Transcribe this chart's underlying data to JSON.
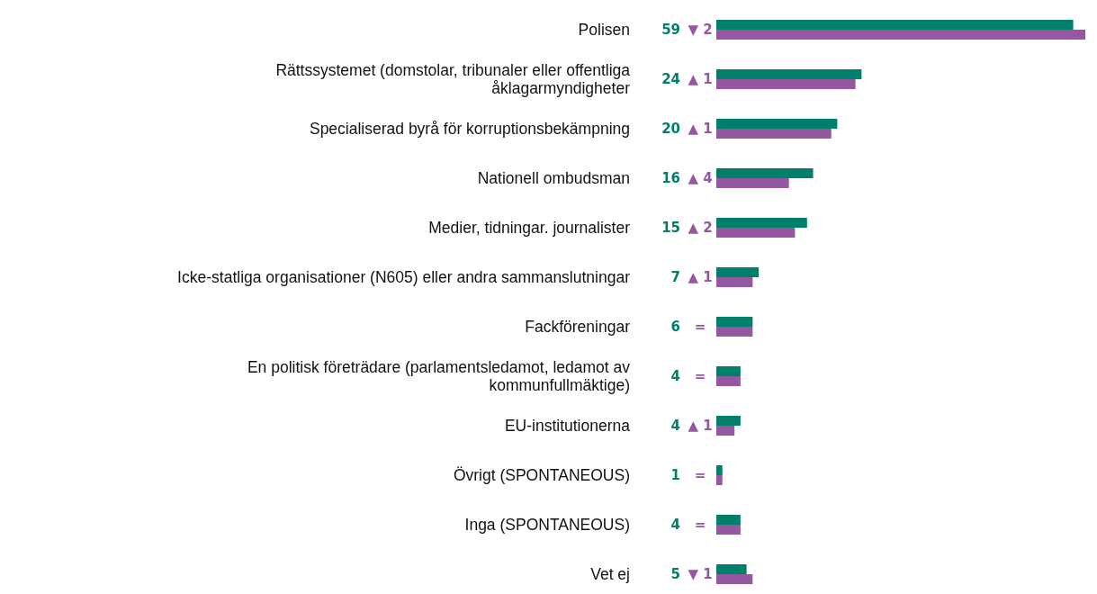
{
  "chart_data": {
    "type": "bar",
    "orientation": "horizontal",
    "categories": [
      "Polisen",
      "Rättssystemet (domstolar, tribunaler eller offentliga åklagarmyndigheter",
      "Specialiserad byrå för korruptionsbekämpning",
      "Nationell ombudsman",
      "Medier, tidningar. journalister",
      "Icke-statliga organisationer (N605) eller andra sammanslutningar",
      "Fackföreningar",
      "En politisk företrädare (parlamentsledamot, ledamot av kommunfullmäktige)",
      "EU-institutionerna",
      "Övrigt (SPONTANEOUS)",
      "Inga (SPONTANEOUS)",
      "Vet ej"
    ],
    "series": [
      {
        "color": "#00806b",
        "values": [
          59,
          24,
          20,
          16,
          15,
          7,
          6,
          4,
          4,
          1,
          4,
          5
        ],
        "value_labels": [
          "59",
          "24",
          "20",
          "16",
          "15",
          "7",
          "6",
          "4",
          "4",
          "1",
          "4",
          "5"
        ]
      },
      {
        "color": "#9558a0",
        "values": [
          61,
          23,
          19,
          12,
          13,
          6,
          6,
          4,
          3,
          1,
          4,
          6
        ]
      }
    ],
    "annotations": [
      "▼ 2",
      "▲ 1",
      "▲ 1",
      "▲ 4",
      "▲ 2",
      "▲ 1",
      "=",
      "=",
      "▲ 1",
      "=",
      "=",
      "▼ 1"
    ]
  }
}
